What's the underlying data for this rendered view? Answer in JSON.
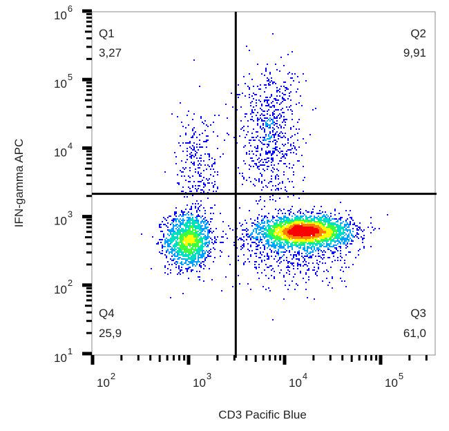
{
  "chart_data": {
    "type": "scatter",
    "subtype": "flow-cytometry density dot plot",
    "xlabel": "CD3 Pacific Blue",
    "ylabel": "IFN-gamma APC",
    "x_scale": "log",
    "y_scale": "log",
    "xlim": [
      100,
      370000
    ],
    "ylim": [
      10,
      1000000
    ],
    "x_ticks": [
      {
        "base": "10",
        "exp": "2",
        "value": 100
      },
      {
        "base": "10",
        "exp": "3",
        "value": 1000
      },
      {
        "base": "10",
        "exp": "4",
        "value": 10000
      },
      {
        "base": "10",
        "exp": "5",
        "value": 100000
      }
    ],
    "y_ticks": [
      {
        "base": "10",
        "exp": "1",
        "value": 10
      },
      {
        "base": "10",
        "exp": "2",
        "value": 100
      },
      {
        "base": "10",
        "exp": "3",
        "value": 1000
      },
      {
        "base": "10",
        "exp": "4",
        "value": 10000
      },
      {
        "base": "10",
        "exp": "5",
        "value": 100000
      },
      {
        "base": "10",
        "exp": "6",
        "value": 1000000
      }
    ],
    "gates": {
      "x": 3100,
      "y": 2150
    },
    "quadrants": [
      {
        "name": "Q1",
        "value": "3,27",
        "position": "top-left"
      },
      {
        "name": "Q2",
        "value": "9,91",
        "position": "top-right"
      },
      {
        "name": "Q3",
        "value": "61,0",
        "position": "bottom-right"
      },
      {
        "name": "Q4",
        "value": "25,9",
        "position": "bottom-left"
      }
    ],
    "populations": [
      {
        "x": 1000,
        "y": 450,
        "spread_x_dec": 0.12,
        "spread_y_dec": 0.2,
        "count": 1500
      },
      {
        "x": 16000,
        "y": 600,
        "spread_x_dec": 0.24,
        "spread_y_dec": 0.11,
        "count": 3200
      },
      {
        "x": 12000,
        "y": 300,
        "spread_x_dec": 0.3,
        "spread_y_dec": 0.28,
        "count": 500
      },
      {
        "x": 7000,
        "y": 16000,
        "spread_x_dec": 0.16,
        "spread_y_dec": 0.5,
        "count": 700
      },
      {
        "x": 1300,
        "y": 6000,
        "spread_x_dec": 0.12,
        "spread_y_dec": 0.4,
        "count": 260
      }
    ],
    "colormap": [
      "#0000ff",
      "#00a0ff",
      "#00e0c0",
      "#40ff40",
      "#ffff00",
      "#ff8000",
      "#ff0000"
    ],
    "grid": false
  }
}
